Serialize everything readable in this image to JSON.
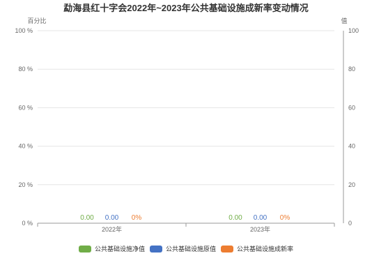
{
  "chart_data": {
    "type": "bar",
    "title": "勐海县红十字会2022年~2023年公共基础设施成新率变动情况",
    "categories": [
      "2022年",
      "2023年"
    ],
    "series": [
      {
        "name": "公共基础设施净值",
        "color": "#70ad47",
        "values": [
          0,
          0
        ],
        "labels": [
          "0.00",
          "0.00"
        ]
      },
      {
        "name": "公共基础设施原值",
        "color": "#4472c4",
        "values": [
          0,
          0
        ],
        "labels": [
          "0.00",
          "0.00"
        ]
      },
      {
        "name": "公共基础设施成新率",
        "color": "#ed7d31",
        "values": [
          0,
          0
        ],
        "labels": [
          "0%",
          "0%"
        ]
      }
    ],
    "y_left": {
      "label": "百分比",
      "range": [
        0,
        100
      ],
      "ticks": [
        0,
        20,
        40,
        60,
        80,
        100
      ],
      "tick_labels": [
        "0 %",
        "20 %",
        "40 %",
        "60 %",
        "80 %",
        "100 %"
      ]
    },
    "y_right": {
      "label": "值",
      "range": [
        0,
        100
      ],
      "ticks": [
        0,
        20,
        40,
        60,
        80,
        100
      ],
      "tick_labels": [
        "0",
        "20",
        "40",
        "60",
        "80",
        "100"
      ]
    },
    "grid": true,
    "legend": "bottom"
  }
}
